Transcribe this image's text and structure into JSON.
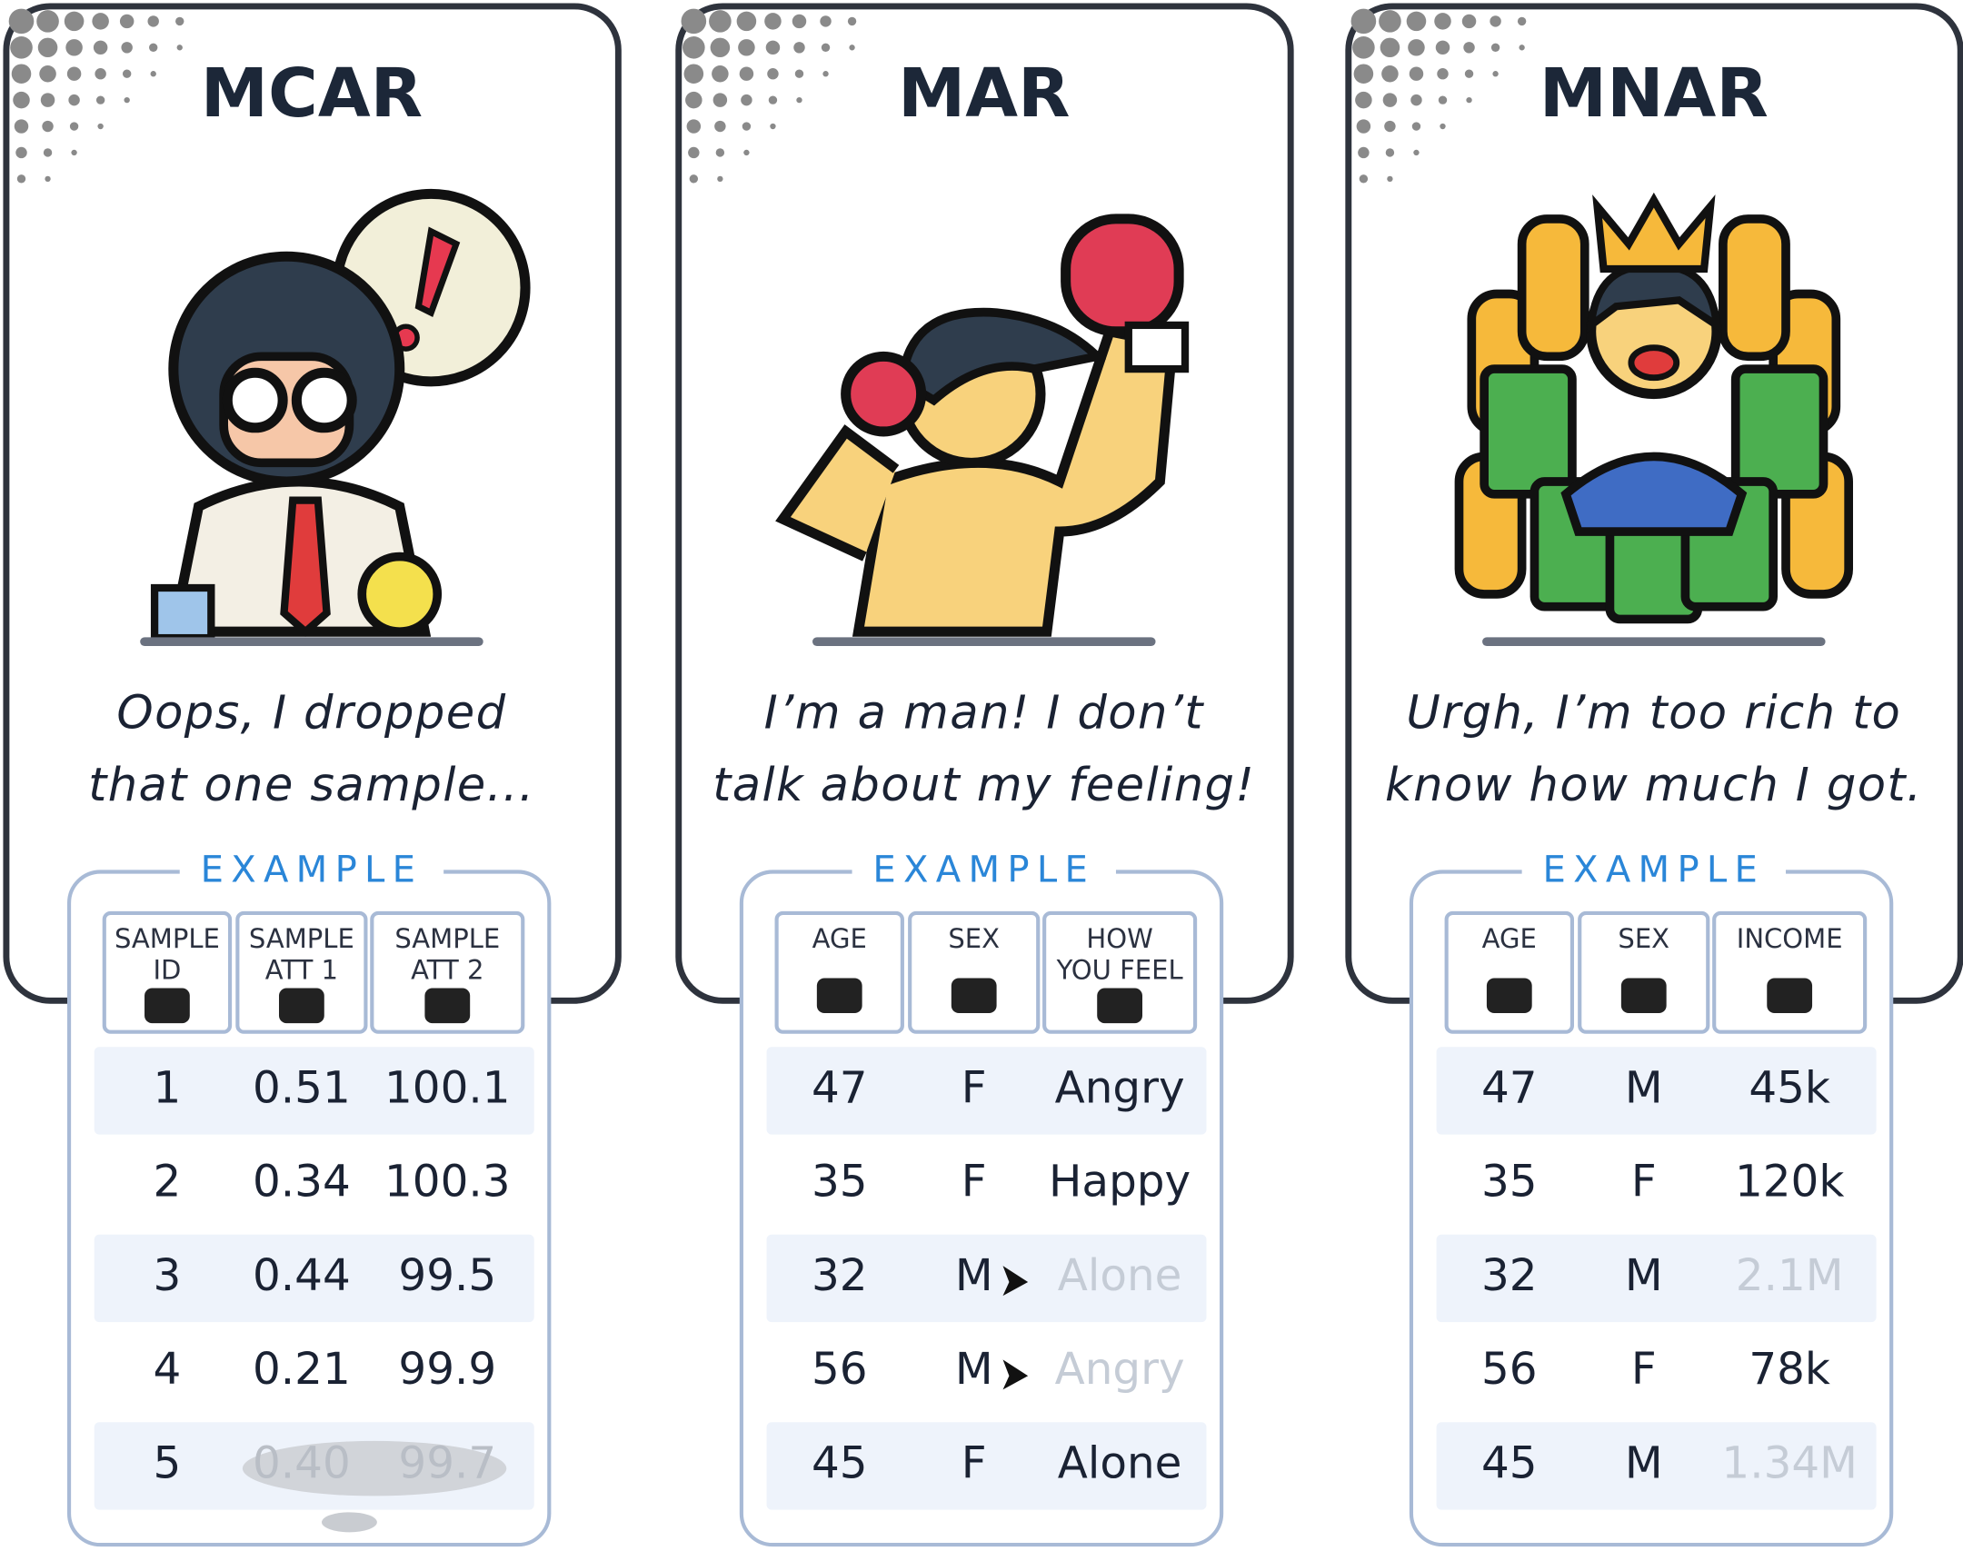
{
  "cards": [
    {
      "title": "MCAR",
      "quote": [
        "Oops, I dropped",
        "that one sample..."
      ],
      "example_label": "EXAMPLE",
      "table": {
        "headers": [
          [
            "SAMPLE",
            "ID"
          ],
          [
            "SAMPLE",
            "ATT 1"
          ],
          [
            "SAMPLE",
            "ATT 2"
          ]
        ],
        "rows": [
          [
            "1",
            "0.51",
            "100.1"
          ],
          [
            "2",
            "0.34",
            "100.3"
          ],
          [
            "3",
            "0.44",
            "99.5"
          ],
          [
            "4",
            "0.21",
            "99.9"
          ],
          [
            "5",
            "0.40",
            "99.7"
          ]
        ],
        "missing_cells": [
          [
            4,
            1
          ],
          [
            4,
            2
          ]
        ]
      }
    },
    {
      "title": "MAR",
      "quote": [
        "I’m a man! I don’t",
        "talk about my feeling!"
      ],
      "example_label": "EXAMPLE",
      "table": {
        "headers": [
          [
            "AGE"
          ],
          [
            "SEX"
          ],
          [
            "HOW",
            "YOU FEEL"
          ]
        ],
        "rows": [
          [
            "47",
            "F",
            "Angry"
          ],
          [
            "35",
            "F",
            "Happy"
          ],
          [
            "32",
            "M",
            "Alone"
          ],
          [
            "56",
            "M",
            "Angry"
          ],
          [
            "45",
            "F",
            "Alone"
          ]
        ],
        "missing_cells": [
          [
            2,
            2
          ],
          [
            3,
            2
          ]
        ]
      }
    },
    {
      "title": "MNAR",
      "quote": [
        "Urgh, I’m too rich to",
        "know how much I got."
      ],
      "example_label": "EXAMPLE",
      "table": {
        "headers": [
          [
            "AGE"
          ],
          [
            "SEX"
          ],
          [
            "INCOME"
          ]
        ],
        "rows": [
          [
            "47",
            "M",
            "45k"
          ],
          [
            "35",
            "F",
            "120k"
          ],
          [
            "32",
            "M",
            "2.1M"
          ],
          [
            "56",
            "F",
            "78k"
          ],
          [
            "45",
            "M",
            "1.34M"
          ]
        ],
        "missing_cells": [
          [
            2,
            2
          ],
          [
            4,
            2
          ]
        ]
      }
    }
  ]
}
